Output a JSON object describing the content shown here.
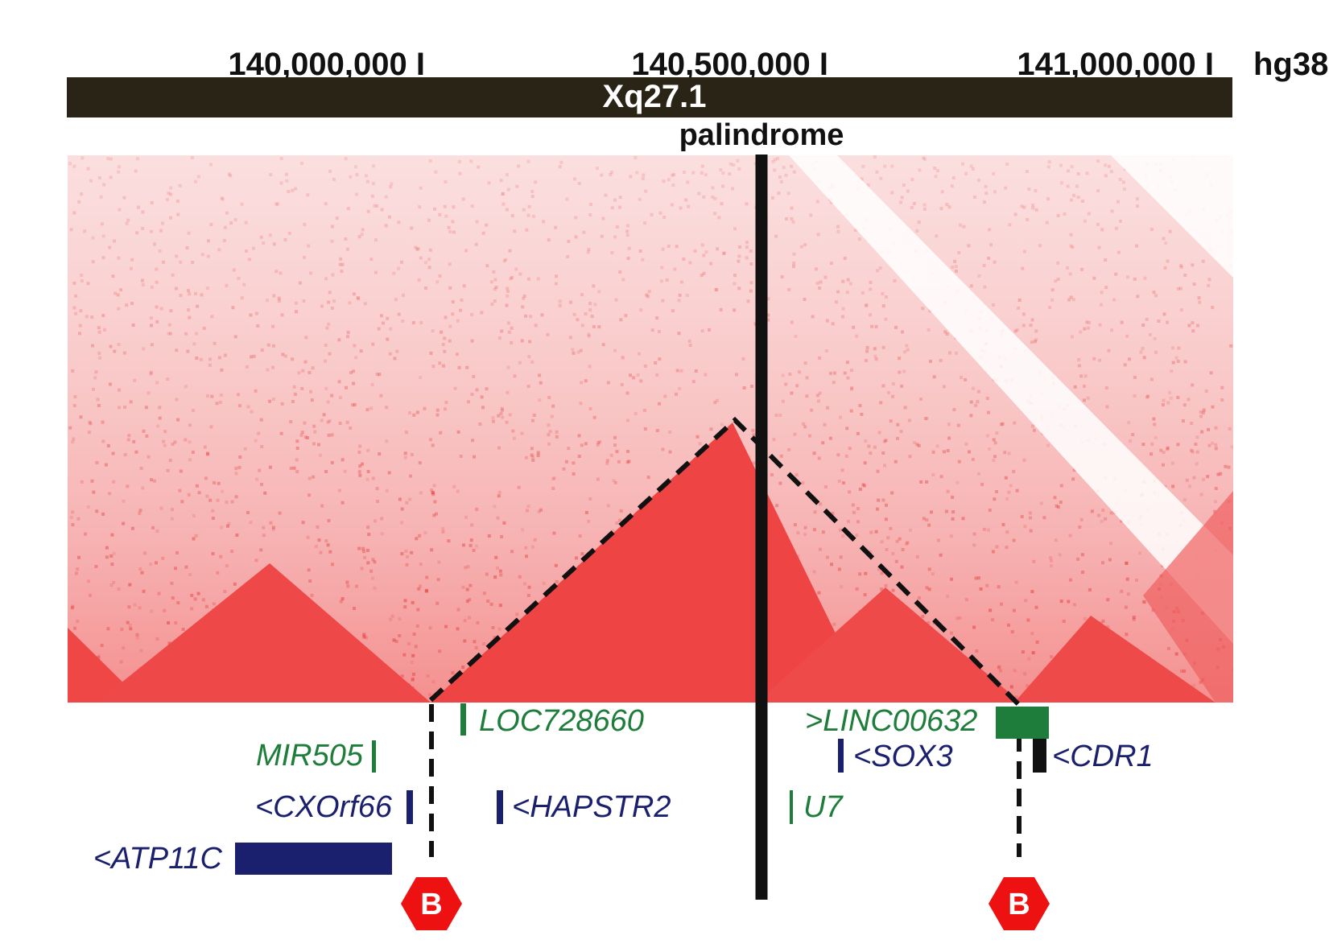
{
  "ruler": {
    "ticks": [
      {
        "label": "140,000,000 I"
      },
      {
        "label": "140,500,000 I"
      },
      {
        "label": "141,000,000 I"
      }
    ],
    "assembly": "hg38"
  },
  "band": {
    "label": "Xq27.1"
  },
  "palindrome": {
    "label": "palindrome"
  },
  "genes": [
    {
      "name": "LOC728660",
      "color": "#1e7d3a"
    },
    {
      "name": ">LINC00632",
      "color": "#1e7d3a"
    },
    {
      "name": "MIR505",
      "color": "#1e7d3a"
    },
    {
      "name": "<SOX3",
      "color": "#1a1f6e"
    },
    {
      "name": "<CDR1",
      "color": "#1a1f6e"
    },
    {
      "name": "<CXOrf66",
      "color": "#1a1f6e"
    },
    {
      "name": "<HAPSTR2",
      "color": "#1a1f6e"
    },
    {
      "name": "U7",
      "color": "#1e7d3a"
    },
    {
      "name": "<ATP11C",
      "color": "#1a1f6e"
    }
  ],
  "boundaries": [
    {
      "label": "B"
    },
    {
      "label": "B"
    }
  ],
  "colors": {
    "band_fill": "#2a2416",
    "heatmap": "#ee4444",
    "boundary_marker": "#ee1111",
    "gene_green": "#1e7d3a",
    "gene_navy": "#1a1f6e"
  }
}
